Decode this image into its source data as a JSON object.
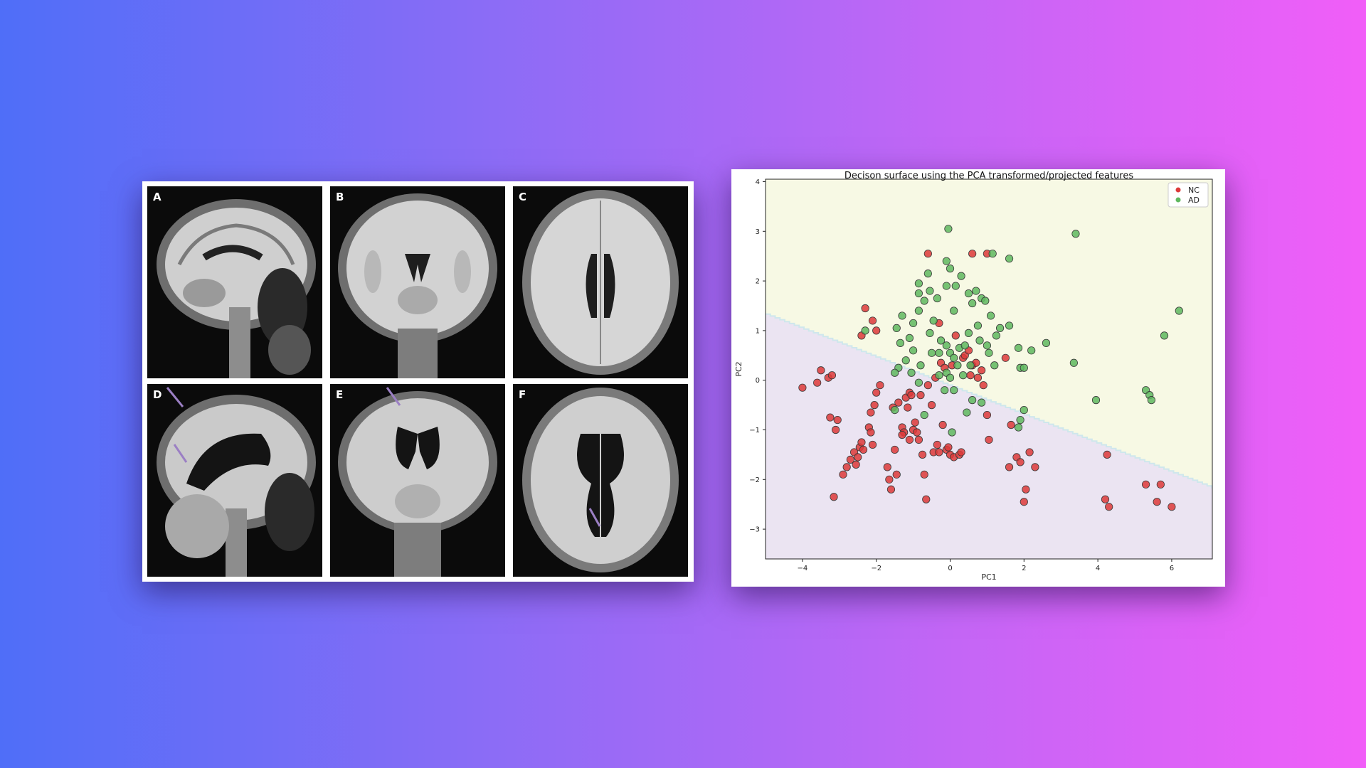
{
  "mri_figure": {
    "panels": [
      {
        "letter": "A",
        "view": "sagittal",
        "state": "normal"
      },
      {
        "letter": "B",
        "view": "coronal",
        "state": "normal"
      },
      {
        "letter": "C",
        "view": "axial",
        "state": "normal"
      },
      {
        "letter": "D",
        "view": "sagittal",
        "state": "atrophy",
        "arrows": 2
      },
      {
        "letter": "E",
        "view": "coronal",
        "state": "atrophy",
        "arrows": 1
      },
      {
        "letter": "F",
        "view": "axial",
        "state": "atrophy",
        "arrows": 1
      }
    ],
    "arrow_color": "#9b7fc4"
  },
  "chart_data": {
    "type": "scatter",
    "title": "Decison surface using the PCA transformed/projected features",
    "xlabel": "PC1",
    "ylabel": "PC2",
    "xlim": [
      -5,
      7.1
    ],
    "ylim": [
      -3.6,
      4.05
    ],
    "xticks": [
      -4,
      -2,
      0,
      2,
      4,
      6
    ],
    "yticks": [
      -3,
      -2,
      -1,
      0,
      1,
      2,
      3,
      4
    ],
    "legend_position": "top-right",
    "decision_boundary": {
      "y_at_x_min": 1.35,
      "y_at_x_max": -2.15,
      "step_width": 0.13
    },
    "regions": [
      {
        "name": "upper",
        "color": "#f7f9e4"
      },
      {
        "name": "lower",
        "color": "#ebe4f2"
      },
      {
        "name": "boundary",
        "color": "#cfe7ec"
      }
    ],
    "series": [
      {
        "name": "NC",
        "color": "#dd3a3a",
        "points": [
          [
            -4,
            -0.15
          ],
          [
            -3.6,
            -0.05
          ],
          [
            -3.5,
            0.2
          ],
          [
            -3.3,
            0.05
          ],
          [
            -3.2,
            0.1
          ],
          [
            -3.25,
            -0.75
          ],
          [
            -3.05,
            -0.8
          ],
          [
            -3.1,
            -1.0
          ],
          [
            -3.15,
            -2.35
          ],
          [
            -2.9,
            -1.9
          ],
          [
            -2.8,
            -1.75
          ],
          [
            -2.7,
            -1.6
          ],
          [
            -2.6,
            -1.45
          ],
          [
            -2.55,
            -1.7
          ],
          [
            -2.5,
            -1.55
          ],
          [
            -2.45,
            -1.35
          ],
          [
            -2.4,
            -1.25
          ],
          [
            -2.35,
            -1.4
          ],
          [
            -2.2,
            -0.95
          ],
          [
            -2.15,
            -1.05
          ],
          [
            -2.1,
            -1.3
          ],
          [
            -2.05,
            -0.5
          ],
          [
            -2.0,
            -0.25
          ],
          [
            -1.9,
            -0.1
          ],
          [
            -2.0,
            1.0
          ],
          [
            -2.1,
            1.2
          ],
          [
            -2.3,
            1.45
          ],
          [
            -2.4,
            0.9
          ],
          [
            -1.7,
            -1.75
          ],
          [
            -1.65,
            -2.0
          ],
          [
            -1.6,
            -2.2
          ],
          [
            -1.5,
            -1.4
          ],
          [
            -1.45,
            -1.9
          ],
          [
            -1.4,
            -0.45
          ],
          [
            -1.3,
            -0.95
          ],
          [
            -1.25,
            -1.05
          ],
          [
            -1.2,
            -0.35
          ],
          [
            -1.15,
            -0.55
          ],
          [
            -1.1,
            -0.25
          ],
          [
            -1.05,
            -0.3
          ],
          [
            -1.0,
            -1.0
          ],
          [
            -0.95,
            -0.85
          ],
          [
            -0.9,
            -1.05
          ],
          [
            -0.85,
            -1.2
          ],
          [
            -0.8,
            -0.3
          ],
          [
            -0.75,
            -1.5
          ],
          [
            -0.7,
            -1.9
          ],
          [
            -0.65,
            -2.4
          ],
          [
            -0.6,
            -0.1
          ],
          [
            -0.5,
            -0.5
          ],
          [
            -0.45,
            -1.45
          ],
          [
            -0.4,
            0.05
          ],
          [
            -0.35,
            -1.3
          ],
          [
            -0.3,
            -1.45
          ],
          [
            -0.25,
            0.35
          ],
          [
            -0.2,
            -0.9
          ],
          [
            -0.15,
            0.25
          ],
          [
            -0.1,
            -1.4
          ],
          [
            -0.05,
            -1.35
          ],
          [
            0.0,
            -1.5
          ],
          [
            0.05,
            0.3
          ],
          [
            0.1,
            -1.55
          ],
          [
            0.15,
            0.9
          ],
          [
            0.25,
            -1.5
          ],
          [
            0.3,
            -1.45
          ],
          [
            0.35,
            0.45
          ],
          [
            0.4,
            0.5
          ],
          [
            0.5,
            0.6
          ],
          [
            0.55,
            0.1
          ],
          [
            0.6,
            0.3
          ],
          [
            0.7,
            0.35
          ],
          [
            0.75,
            0.05
          ],
          [
            0.85,
            0.2
          ],
          [
            0.9,
            -0.1
          ],
          [
            1.0,
            -0.7
          ],
          [
            1.05,
            -1.2
          ],
          [
            0.6,
            2.55
          ],
          [
            1.0,
            2.55
          ],
          [
            1.5,
            0.45
          ],
          [
            1.6,
            -1.75
          ],
          [
            1.65,
            -0.9
          ],
          [
            1.8,
            -1.55
          ],
          [
            1.9,
            -1.65
          ],
          [
            2.05,
            -2.2
          ],
          [
            2.0,
            -2.45
          ],
          [
            2.15,
            -1.45
          ],
          [
            2.3,
            -1.75
          ],
          [
            4.25,
            -1.5
          ],
          [
            4.2,
            -2.4
          ],
          [
            4.3,
            -2.55
          ],
          [
            5.3,
            -2.1
          ],
          [
            5.6,
            -2.45
          ],
          [
            5.7,
            -2.1
          ],
          [
            6.0,
            -2.55
          ],
          [
            -2.15,
            -0.65
          ],
          [
            -1.3,
            -1.1
          ],
          [
            -1.1,
            -1.2
          ],
          [
            -1.55,
            -0.55
          ],
          [
            -0.3,
            1.15
          ],
          [
            -0.6,
            2.55
          ]
        ]
      },
      {
        "name": "AD",
        "color": "#5fb85f",
        "points": [
          [
            -0.05,
            3.05
          ],
          [
            -0.1,
            2.4
          ],
          [
            0.0,
            2.25
          ],
          [
            -0.6,
            2.15
          ],
          [
            -0.85,
            1.95
          ],
          [
            -0.85,
            1.75
          ],
          [
            -0.7,
            1.6
          ],
          [
            -0.85,
            1.4
          ],
          [
            -0.55,
            1.8
          ],
          [
            -0.35,
            1.65
          ],
          [
            -0.1,
            1.9
          ],
          [
            0.15,
            1.9
          ],
          [
            0.3,
            2.1
          ],
          [
            0.5,
            1.75
          ],
          [
            0.6,
            1.55
          ],
          [
            0.7,
            1.8
          ],
          [
            0.85,
            1.65
          ],
          [
            0.95,
            1.6
          ],
          [
            1.1,
            1.3
          ],
          [
            1.15,
            2.55
          ],
          [
            1.6,
            2.45
          ],
          [
            1.35,
            1.05
          ],
          [
            1.25,
            0.9
          ],
          [
            1.6,
            1.1
          ],
          [
            1.85,
            0.65
          ],
          [
            0.1,
            1.4
          ],
          [
            -1.0,
            1.15
          ],
          [
            -1.3,
            1.3
          ],
          [
            -1.45,
            1.05
          ],
          [
            -1.1,
            0.85
          ],
          [
            -1.35,
            0.75
          ],
          [
            -1.0,
            0.6
          ],
          [
            -1.2,
            0.4
          ],
          [
            -1.4,
            0.25
          ],
          [
            -1.5,
            0.15
          ],
          [
            -1.05,
            0.15
          ],
          [
            -0.8,
            0.3
          ],
          [
            -0.5,
            0.55
          ],
          [
            -0.3,
            0.55
          ],
          [
            -0.55,
            0.95
          ],
          [
            -0.45,
            1.2
          ],
          [
            -0.25,
            0.8
          ],
          [
            -0.1,
            0.7
          ],
          [
            0.0,
            0.55
          ],
          [
            0.1,
            0.45
          ],
          [
            0.25,
            0.65
          ],
          [
            0.4,
            0.7
          ],
          [
            0.5,
            0.95
          ],
          [
            0.75,
            1.1
          ],
          [
            0.8,
            0.8
          ],
          [
            1.0,
            0.7
          ],
          [
            1.05,
            0.55
          ],
          [
            1.2,
            0.3
          ],
          [
            0.55,
            0.3
          ],
          [
            0.35,
            0.1
          ],
          [
            0.2,
            0.3
          ],
          [
            -0.1,
            0.15
          ],
          [
            -0.3,
            0.1
          ],
          [
            0.0,
            0.05
          ],
          [
            -0.15,
            -0.2
          ],
          [
            -0.85,
            -0.05
          ],
          [
            0.1,
            -0.2
          ],
          [
            0.6,
            -0.4
          ],
          [
            0.85,
            -0.45
          ],
          [
            -1.5,
            -0.6
          ],
          [
            -0.7,
            -0.7
          ],
          [
            -2.3,
            1.0
          ],
          [
            1.9,
            0.25
          ],
          [
            2.0,
            0.25
          ],
          [
            2.2,
            0.6
          ],
          [
            2.6,
            0.75
          ],
          [
            3.35,
            0.35
          ],
          [
            3.4,
            2.95
          ],
          [
            3.95,
            -0.4
          ],
          [
            5.3,
            -0.2
          ],
          [
            5.4,
            -0.3
          ],
          [
            5.45,
            -0.4
          ],
          [
            5.8,
            0.9
          ],
          [
            6.2,
            1.4
          ],
          [
            1.85,
            -0.95
          ],
          [
            1.9,
            -0.8
          ],
          [
            2.0,
            -0.6
          ],
          [
            0.05,
            -1.05
          ],
          [
            0.45,
            -0.65
          ]
        ]
      }
    ]
  }
}
